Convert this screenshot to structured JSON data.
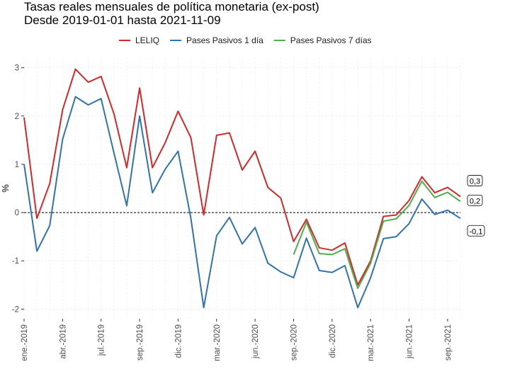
{
  "title": "Tasas reales mensuales de política monetaria (ex-post)",
  "subtitle": "Desde 2019-01-01 hasta 2021-11-09",
  "chart_data": {
    "type": "line",
    "ylabel": "%",
    "xlabel": "",
    "ylim": [
      -2.2,
      3.2
    ],
    "y_ticks": [
      -2,
      -1,
      0,
      1,
      2,
      3
    ],
    "y_tick_labels": [
      "-2",
      "-1",
      "0",
      "1",
      "2",
      "3"
    ],
    "x_tick_labels": [
      "ene.-2019",
      "abr.-2019",
      "jul.-2019",
      "sep.-2019",
      "dic.-2019",
      "mar.-2020",
      "jun.-2020",
      "sep.-2020",
      "dic.-2020",
      "mar.-2021",
      "jun.-2021",
      "sep.-2021"
    ],
    "x_tick_index": [
      0,
      3,
      6,
      9,
      12,
      15,
      18,
      21,
      24,
      27,
      30,
      33
    ],
    "x": [
      "2019-01",
      "2019-02",
      "2019-03",
      "2019-04",
      "2019-05",
      "2019-06",
      "2019-07",
      "2019-08",
      "2019-09",
      "2019-10",
      "2019-11",
      "2019-12",
      "2020-01",
      "2020-02",
      "2020-03",
      "2020-04",
      "2020-05",
      "2020-06",
      "2020-07",
      "2020-08",
      "2020-09",
      "2020-10",
      "2020-11",
      "2020-12",
      "2021-01",
      "2021-02",
      "2021-03",
      "2021-04",
      "2021-05",
      "2021-06",
      "2021-07",
      "2021-08",
      "2021-09",
      "2021-10",
      "2021-11"
    ],
    "grid": true,
    "legend_position": "top",
    "reference_line": 0,
    "series": [
      {
        "name": "LELIQ",
        "color": "#d62728",
        "values": [
          1.97,
          -0.12,
          0.6,
          2.13,
          2.97,
          2.7,
          2.82,
          2.05,
          0.93,
          2.58,
          0.93,
          1.45,
          2.1,
          1.55,
          -0.05,
          1.6,
          1.65,
          0.88,
          1.27,
          0.52,
          0.3,
          -0.6,
          -0.14,
          -0.73,
          -0.78,
          -0.63,
          -1.5,
          -1.0,
          -0.08,
          -0.05,
          0.25,
          0.74,
          0.41,
          0.52,
          0.33
        ]
      },
      {
        "name": "Pases Pasivos 1 día",
        "color": "#2f73b0",
        "values": [
          1.0,
          -0.8,
          -0.27,
          1.52,
          2.4,
          2.23,
          2.36,
          1.24,
          0.14,
          2.0,
          0.41,
          0.9,
          1.27,
          -0.12,
          -1.97,
          -0.48,
          -0.1,
          -0.65,
          -0.31,
          -1.05,
          -1.23,
          -1.35,
          -0.53,
          -1.2,
          -1.24,
          -1.1,
          -1.97,
          -1.35,
          -0.54,
          -0.5,
          -0.23,
          0.28,
          -0.04,
          0.05,
          -0.12
        ]
      },
      {
        "name": "Pases Pasivos 7 días",
        "color": "#4daf4a",
        "values": [
          null,
          null,
          null,
          null,
          null,
          null,
          null,
          null,
          null,
          null,
          null,
          null,
          null,
          null,
          null,
          null,
          null,
          null,
          null,
          null,
          null,
          -0.87,
          -0.2,
          -0.85,
          -0.87,
          -0.75,
          -1.57,
          -1.05,
          -0.18,
          -0.13,
          0.15,
          0.65,
          0.31,
          0.42,
          0.23
        ]
      }
    ],
    "end_labels": [
      {
        "text": "0,3",
        "series": "LELIQ"
      },
      {
        "text": "0,2",
        "series": "Pases Pasivos 7 días"
      },
      {
        "text": "-0,1",
        "series": "Pases Pasivos 1 día"
      }
    ]
  }
}
